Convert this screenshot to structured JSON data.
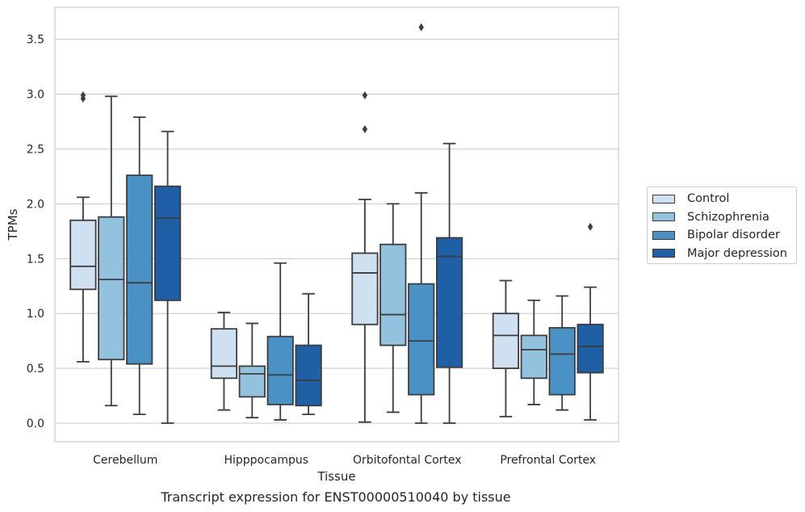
{
  "chart_data": {
    "type": "box",
    "caption": "Transcript expression for ENST00000510040 by tissue",
    "xlabel": "Tissue",
    "ylabel": "TPMs",
    "ylim": [
      -0.17,
      3.8
    ],
    "yticks": [
      0.0,
      0.5,
      1.0,
      1.5,
      2.0,
      2.5,
      3.0,
      3.5
    ],
    "ytick_labels": [
      "0.0",
      "0.5",
      "1.0",
      "1.5",
      "2.0",
      "2.5",
      "3.0",
      "3.5"
    ],
    "grid": "horizontal",
    "legend_position": "right",
    "categories": [
      "Cerebellum",
      "Hipppocampus",
      "Orbitofontal Cortex",
      "Prefrontal Cortex"
    ],
    "series": [
      {
        "name": "Control",
        "color": "#cfe0f0",
        "boxes": [
          {
            "whislo": 0.56,
            "q1": 1.22,
            "med": 1.43,
            "q3": 1.85,
            "whishi": 2.06,
            "fliers": [
              2.96,
              2.99
            ]
          },
          {
            "whislo": 0.12,
            "q1": 0.41,
            "med": 0.52,
            "q3": 0.86,
            "whishi": 1.01,
            "fliers": []
          },
          {
            "whislo": 0.01,
            "q1": 0.9,
            "med": 1.37,
            "q3": 1.55,
            "whishi": 2.04,
            "fliers": [
              2.68,
              2.99
            ]
          },
          {
            "whislo": 0.06,
            "q1": 0.5,
            "med": 0.8,
            "q3": 1.0,
            "whishi": 1.3,
            "fliers": []
          }
        ]
      },
      {
        "name": "Schizophrenia",
        "color": "#93c2de",
        "boxes": [
          {
            "whislo": 0.16,
            "q1": 0.58,
            "med": 1.31,
            "q3": 1.88,
            "whishi": 2.98,
            "fliers": []
          },
          {
            "whislo": 0.05,
            "q1": 0.24,
            "med": 0.45,
            "q3": 0.52,
            "whishi": 0.91,
            "fliers": []
          },
          {
            "whislo": 0.1,
            "q1": 0.71,
            "med": 0.99,
            "q3": 1.63,
            "whishi": 2.0,
            "fliers": []
          },
          {
            "whislo": 0.17,
            "q1": 0.41,
            "med": 0.67,
            "q3": 0.8,
            "whishi": 1.12,
            "fliers": []
          }
        ]
      },
      {
        "name": "Bipolar disorder",
        "color": "#4a92c6",
        "boxes": [
          {
            "whislo": 0.08,
            "q1": 0.54,
            "med": 1.28,
            "q3": 2.26,
            "whishi": 2.79,
            "fliers": []
          },
          {
            "whislo": 0.03,
            "q1": 0.17,
            "med": 0.44,
            "q3": 0.79,
            "whishi": 1.46,
            "fliers": []
          },
          {
            "whislo": 0.0,
            "q1": 0.26,
            "med": 0.75,
            "q3": 1.27,
            "whishi": 2.1,
            "fliers": [
              3.61
            ]
          },
          {
            "whislo": 0.12,
            "q1": 0.26,
            "med": 0.63,
            "q3": 0.87,
            "whishi": 1.16,
            "fliers": []
          }
        ]
      },
      {
        "name": "Major depression",
        "color": "#1e5fa6",
        "boxes": [
          {
            "whislo": 0.0,
            "q1": 1.12,
            "med": 1.87,
            "q3": 2.16,
            "whishi": 2.66,
            "fliers": []
          },
          {
            "whislo": 0.08,
            "q1": 0.16,
            "med": 0.39,
            "q3": 0.71,
            "whishi": 1.18,
            "fliers": []
          },
          {
            "whislo": 0.0,
            "q1": 0.51,
            "med": 1.52,
            "q3": 1.69,
            "whishi": 2.55,
            "fliers": []
          },
          {
            "whislo": 0.03,
            "q1": 0.46,
            "med": 0.7,
            "q3": 0.9,
            "whishi": 1.24,
            "fliers": [
              1.79
            ]
          }
        ]
      }
    ]
  }
}
